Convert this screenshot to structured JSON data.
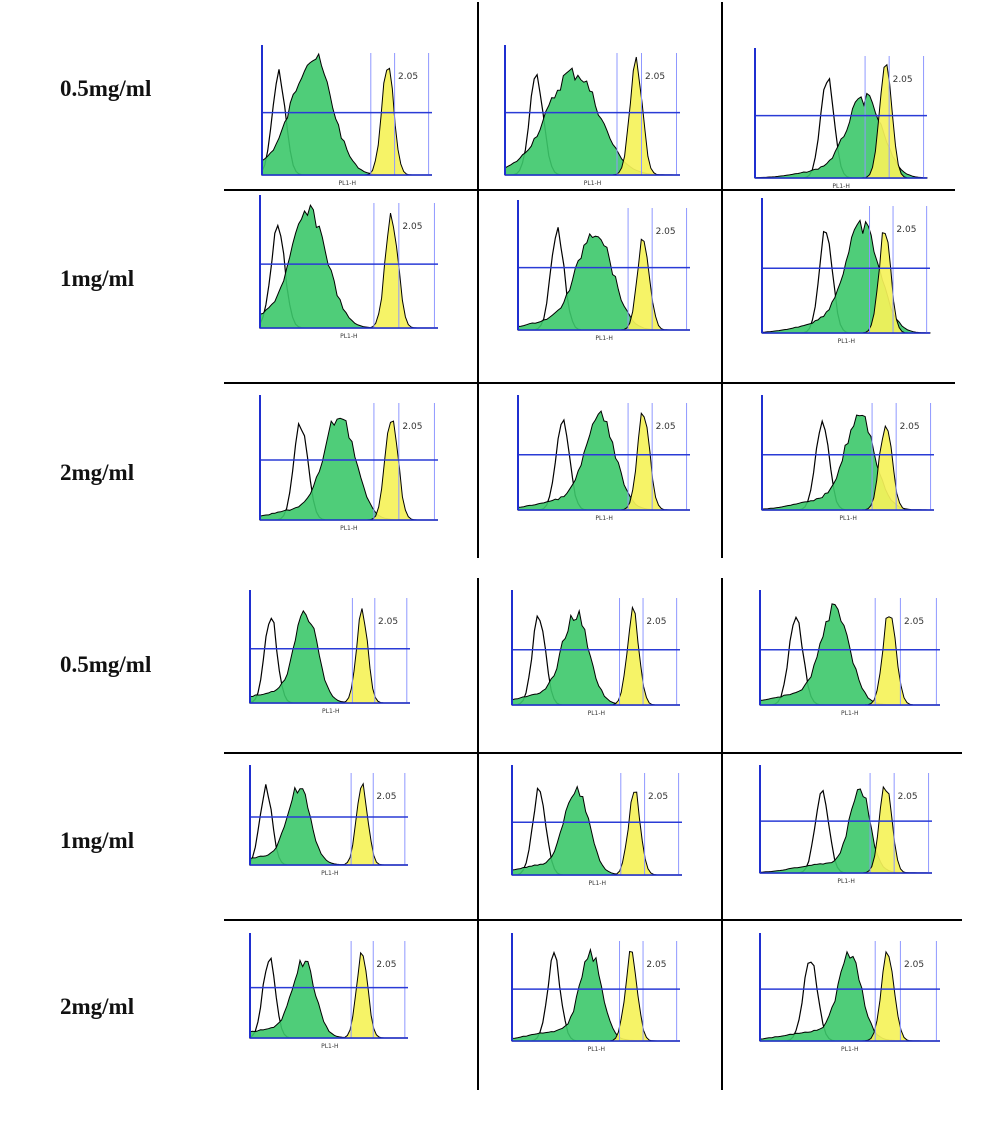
{
  "colors": {
    "control_outline": "#000000",
    "green_fill": "#3cc86a",
    "yellow_fill": "#f5f25a",
    "axis_blue": "#1f2fd0",
    "gate_line": "#2a3bd6",
    "marker_light_blue": "#8f98ff",
    "grid_line": "#000000"
  },
  "histogram_xlabel": "PL1-H",
  "chart_data": {
    "type": "flow-cytometry-histogram-panel",
    "blocks": [
      {
        "rows": [
          {
            "label": "0.5mg/ml",
            "cells": [
              {
                "green_center": 0.3,
                "green_width": 0.16,
                "green_height": 0.92,
                "yellow_center": 0.74,
                "yellow_height": 0.95,
                "marker_text": "2.05"
              },
              {
                "green_center": 0.4,
                "green_width": 0.2,
                "green_height": 0.8,
                "yellow_center": 0.75,
                "yellow_height": 0.95,
                "marker_text": "2.05"
              },
              {
                "green_center": 0.64,
                "green_width": 0.14,
                "green_height": 0.62,
                "yellow_center": 0.76,
                "yellow_height": 0.92,
                "marker_text": "2.05"
              }
            ]
          },
          {
            "label": "1mg/ml",
            "cells": [
              {
                "green_center": 0.28,
                "green_width": 0.14,
                "green_height": 0.88,
                "yellow_center": 0.74,
                "yellow_height": 0.92,
                "marker_text": "2.05"
              },
              {
                "green_center": 0.45,
                "green_width": 0.14,
                "green_height": 0.78,
                "yellow_center": 0.73,
                "yellow_height": 0.75,
                "marker_text": "2.05"
              },
              {
                "green_center": 0.6,
                "green_width": 0.14,
                "green_height": 0.8,
                "yellow_center": 0.73,
                "yellow_height": 0.82,
                "marker_text": "2.05"
              }
            ]
          },
          {
            "label": "2mg/ml",
            "cells": [
              {
                "green_center": 0.45,
                "green_width": 0.12,
                "green_height": 0.85,
                "yellow_center": 0.74,
                "yellow_height": 0.92,
                "marker_text": "2.05"
              },
              {
                "green_center": 0.48,
                "green_width": 0.12,
                "green_height": 0.82,
                "yellow_center": 0.73,
                "yellow_height": 0.92,
                "marker_text": "2.05"
              },
              {
                "green_center": 0.57,
                "green_width": 0.12,
                "green_height": 0.82,
                "yellow_center": 0.72,
                "yellow_height": 0.82,
                "marker_text": "2.05"
              }
            ]
          }
        ]
      },
      {
        "rows": [
          {
            "label": "0.5mg/ml",
            "cells": [
              {
                "green_center": 0.35,
                "green_width": 0.1,
                "green_height": 0.8,
                "yellow_center": 0.7,
                "yellow_height": 0.86,
                "marker_text": "2.05"
              },
              {
                "green_center": 0.38,
                "green_width": 0.11,
                "green_height": 0.8,
                "yellow_center": 0.72,
                "yellow_height": 0.88,
                "marker_text": "2.05"
              },
              {
                "green_center": 0.42,
                "green_width": 0.11,
                "green_height": 0.85,
                "yellow_center": 0.72,
                "yellow_height": 0.9,
                "marker_text": "2.05"
              }
            ]
          },
          {
            "label": "1mg/ml",
            "cells": [
              {
                "green_center": 0.31,
                "green_width": 0.1,
                "green_height": 0.78,
                "yellow_center": 0.71,
                "yellow_height": 0.86,
                "marker_text": "2.05"
              },
              {
                "green_center": 0.38,
                "green_width": 0.1,
                "green_height": 0.8,
                "yellow_center": 0.72,
                "yellow_height": 0.82,
                "marker_text": "2.05"
              },
              {
                "green_center": 0.58,
                "green_width": 0.08,
                "green_height": 0.8,
                "yellow_center": 0.73,
                "yellow_height": 0.88,
                "marker_text": "2.05"
              }
            ]
          },
          {
            "label": "2mg/ml",
            "cells": [
              {
                "green_center": 0.34,
                "green_width": 0.1,
                "green_height": 0.75,
                "yellow_center": 0.71,
                "yellow_height": 0.88,
                "marker_text": "2.05"
              },
              {
                "green_center": 0.47,
                "green_width": 0.09,
                "green_height": 0.82,
                "yellow_center": 0.71,
                "yellow_height": 0.88,
                "marker_text": "2.05"
              },
              {
                "green_center": 0.5,
                "green_width": 0.09,
                "green_height": 0.8,
                "yellow_center": 0.71,
                "yellow_height": 0.88,
                "marker_text": "2.05"
              }
            ]
          }
        ]
      }
    ]
  }
}
